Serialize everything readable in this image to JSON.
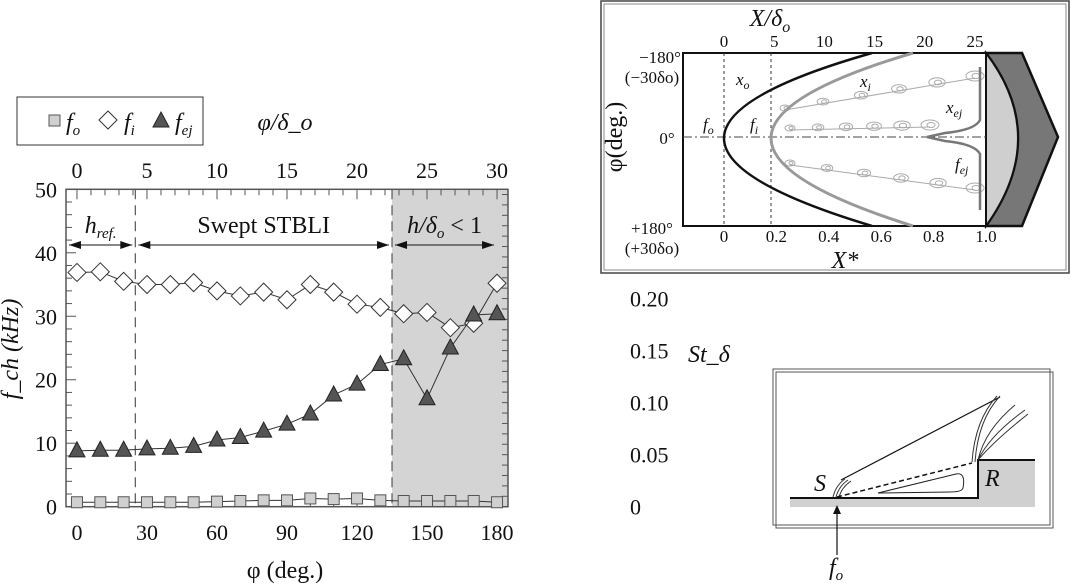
{
  "chart_data": {
    "type": "line",
    "x": [
      0,
      10,
      20,
      30,
      40,
      50,
      60,
      70,
      80,
      90,
      100,
      110,
      120,
      130,
      140,
      150,
      160,
      170,
      180
    ],
    "series": [
      {
        "name": "f_o",
        "marker": "square",
        "color": "#d0d0d0",
        "values": [
          0.7,
          0.7,
          0.7,
          0.7,
          0.7,
          0.7,
          0.8,
          0.9,
          1.0,
          1.0,
          1.3,
          1.2,
          1.3,
          1.0,
          0.9,
          0.9,
          0.9,
          0.9,
          0.7
        ]
      },
      {
        "name": "f_i",
        "marker": "diamond",
        "color": "#ffffff",
        "values": [
          36.9,
          37.0,
          35.5,
          35.0,
          35.0,
          35.3,
          34.0,
          33.2,
          33.8,
          32.6,
          35.0,
          33.8,
          31.9,
          31.4,
          30.4,
          30.6,
          28.2,
          28.9,
          35.2
        ]
      },
      {
        "name": "f_ej",
        "marker": "triangle",
        "color": "#555555",
        "values": [
          8.8,
          8.9,
          8.9,
          9.1,
          9.2,
          9.5,
          10.5,
          10.9,
          11.9,
          13.0,
          14.6,
          17.6,
          19.3,
          22.4,
          23.3,
          17.0,
          25.0,
          30.2,
          30.4
        ]
      }
    ],
    "xlabel": "φ (deg.)",
    "ylabel": "f_ch (kHz)",
    "y2label": "St_δ",
    "x2label": "φ/δ_o",
    "xlim": [
      -4.7,
      184.7
    ],
    "ylim": [
      0,
      50
    ],
    "xticks": [
      0,
      30,
      60,
      90,
      120,
      150,
      180
    ],
    "yticks": [
      0,
      10,
      20,
      30,
      40,
      50
    ],
    "x2ticks": [
      0,
      5,
      10,
      15,
      20,
      25,
      30
    ],
    "y2ticks": [
      "0",
      "0.05",
      "0.10",
      "0.15",
      "0.20"
    ],
    "y2_per_khz": 0.0061,
    "x2_per_deg": 0.16667,
    "legend": {
      "placement": "top-left",
      "labels": [
        "f",
        "f",
        "f"
      ],
      "subs": [
        "o",
        "i",
        "ej"
      ]
    },
    "shaded_region": {
      "from": 135,
      "to": 184.7,
      "color": "#d4d4d4"
    },
    "dashed_lines": [
      25,
      135
    ],
    "regions": [
      {
        "label": "h",
        "sub": "ref.",
        "from": 0,
        "to": 25
      },
      {
        "label": "Swept STBLI",
        "from": 25,
        "to": 135
      },
      {
        "label": "h/δ",
        "sub": "o",
        "suffix": " < 1",
        "from": 135,
        "to": 180
      }
    ]
  },
  "inset_top": {
    "top_axis_label": "X/δ",
    "top_axis_sub": "o",
    "top_ticks": [
      "0",
      "5",
      "10",
      "15",
      "20",
      "25"
    ],
    "bottom_axis_label": "X*",
    "bottom_ticks": [
      "0",
      "0.2",
      "0.4",
      "0.6",
      "0.8",
      "1.0"
    ],
    "left_axis_label": "φ(deg.)",
    "left_labels": [
      "−180°",
      "(−30δo)",
      "0°",
      "+180°",
      "(+30δo)"
    ],
    "curve_labels": {
      "xo": "x",
      "xo_sub": "o",
      "xi": "x",
      "xi_sub": "i",
      "xej": "x",
      "xej_sub": "ej",
      "fo": "f",
      "fo_sub": "o",
      "fi": "f",
      "fi_sub": "i",
      "fej": "f",
      "fej_sub": "ej"
    }
  },
  "inset_bottom": {
    "S": "S",
    "R": "R",
    "arrow_label": "f",
    "arrow_label_sub": "o"
  }
}
